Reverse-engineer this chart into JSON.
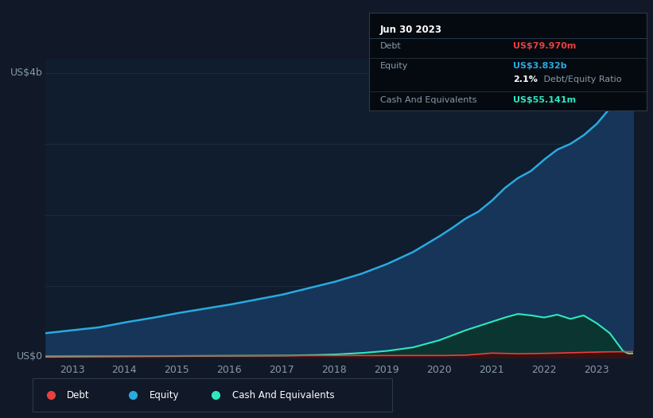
{
  "background_color": "#111827",
  "plot_bg_color": "#0f1d2e",
  "tooltip_bg": "#050a10",
  "ylabel_text": "US$4b",
  "y0_text": "US$0",
  "x_ticks": [
    "2013",
    "2014",
    "2015",
    "2016",
    "2017",
    "2018",
    "2019",
    "2020",
    "2021",
    "2022",
    "2023"
  ],
  "x_tick_years": [
    2013,
    2014,
    2015,
    2016,
    2017,
    2018,
    2019,
    2020,
    2021,
    2022,
    2023
  ],
  "tooltip_title": "Jun 30 2023",
  "equity_color": "#29aae1",
  "equity_fill": "#163558",
  "debt_color": "#e84040",
  "debt_fill": "#3a1010",
  "cash_color": "#2ee8c0",
  "cash_fill": "#0a3530",
  "grid_color": "#1e2d40",
  "tick_color": "#8899aa",
  "legend_border": "#2a3a4a",
  "ylim_max": 4.0,
  "xlim_min": 2012.5,
  "xlim_max": 2023.7,
  "equity_t": [
    2012.5,
    2013.0,
    2013.5,
    2014.0,
    2014.5,
    2015.0,
    2015.5,
    2016.0,
    2016.5,
    2017.0,
    2017.5,
    2018.0,
    2018.5,
    2019.0,
    2019.5,
    2020.0,
    2020.25,
    2020.5,
    2020.75,
    2021.0,
    2021.25,
    2021.5,
    2021.75,
    2022.0,
    2022.25,
    2022.5,
    2022.75,
    2023.0,
    2023.25,
    2023.5,
    2023.6
  ],
  "equity_v": [
    0.34,
    0.38,
    0.42,
    0.49,
    0.55,
    0.62,
    0.68,
    0.74,
    0.81,
    0.88,
    0.97,
    1.06,
    1.17,
    1.31,
    1.48,
    1.7,
    1.82,
    1.95,
    2.05,
    2.2,
    2.38,
    2.52,
    2.62,
    2.78,
    2.92,
    3.0,
    3.12,
    3.28,
    3.5,
    3.75,
    3.832
  ],
  "cash_t": [
    2012.5,
    2013.0,
    2014.0,
    2015.0,
    2016.0,
    2017.0,
    2017.5,
    2018.0,
    2018.5,
    2019.0,
    2019.5,
    2020.0,
    2020.25,
    2020.5,
    2020.75,
    2021.0,
    2021.25,
    2021.5,
    2021.75,
    2022.0,
    2022.25,
    2022.5,
    2022.75,
    2023.0,
    2023.25,
    2023.5,
    2023.6
  ],
  "cash_v": [
    0.01,
    0.012,
    0.015,
    0.018,
    0.02,
    0.025,
    0.03,
    0.04,
    0.06,
    0.09,
    0.14,
    0.24,
    0.31,
    0.38,
    0.44,
    0.5,
    0.56,
    0.61,
    0.59,
    0.56,
    0.6,
    0.54,
    0.59,
    0.48,
    0.34,
    0.09,
    0.055
  ],
  "debt_t": [
    2012.5,
    2013.0,
    2014.0,
    2015.0,
    2016.0,
    2017.0,
    2018.0,
    2019.0,
    2019.5,
    2020.0,
    2020.5,
    2021.0,
    2021.5,
    2022.0,
    2022.5,
    2023.0,
    2023.5,
    2023.6
  ],
  "debt_v": [
    0.02,
    0.022,
    0.02,
    0.022,
    0.025,
    0.025,
    0.025,
    0.025,
    0.025,
    0.025,
    0.03,
    0.06,
    0.05,
    0.055,
    0.065,
    0.075,
    0.08,
    0.08
  ]
}
